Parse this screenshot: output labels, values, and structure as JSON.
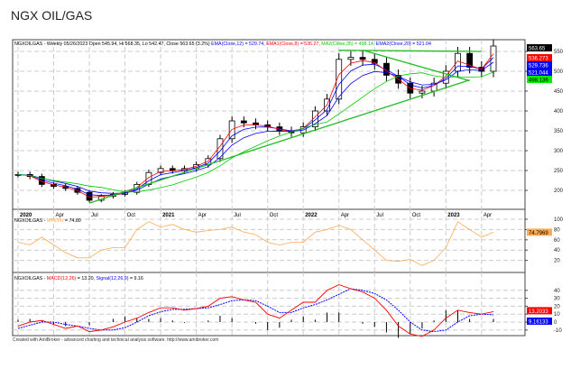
{
  "title": "NGX OIL/GAS",
  "footer": "Created with AmiBroker - advanced charting and technical analysis software. http://www.amibroker.com",
  "chart_data": [
    {
      "type": "candlestick",
      "legend": {
        "prefix": "NGXOILGAS - Weekly 05/26/2023 Open 545.94, Hi 568.35, Lo 542.47, Close 563.65 (3.2%)",
        "ema12": "EMA(Close,12) = 529.74,",
        "ema8": "EMA1(Close,8) = 536.27,",
        "ma35": "MA2(Close,35) = 498.14,",
        "ema20": "EMA2(Close,20) = 521.04"
      },
      "x_ticks": [
        "2020",
        "Apr",
        "Jul",
        "Oct",
        "2021",
        "Apr",
        "Jul",
        "Oct",
        "2022",
        "Apr",
        "Jul",
        "Oct",
        "2023",
        "Apr"
      ],
      "months": [
        "2020-01",
        "2020-02",
        "2020-03",
        "2020-04",
        "2020-05",
        "2020-06",
        "2020-07",
        "2020-08",
        "2020-09",
        "2020-10",
        "2020-11",
        "2020-12",
        "2021-01",
        "2021-02",
        "2021-03",
        "2021-04",
        "2021-05",
        "2021-06",
        "2021-07",
        "2021-08",
        "2021-09",
        "2021-10",
        "2021-11",
        "2021-12",
        "2022-01",
        "2022-02",
        "2022-03",
        "2022-04",
        "2022-05",
        "2022-06",
        "2022-07",
        "2022-08",
        "2022-09",
        "2022-10",
        "2022-11",
        "2022-12",
        "2023-01",
        "2023-02",
        "2023-03",
        "2023-04",
        "2023-05"
      ],
      "close": [
        240,
        235,
        215,
        210,
        205,
        195,
        175,
        185,
        190,
        195,
        215,
        245,
        255,
        250,
        255,
        265,
        280,
        330,
        375,
        370,
        365,
        360,
        350,
        345,
        360,
        400,
        430,
        530,
        535,
        530,
        520,
        490,
        470,
        445,
        450,
        470,
        500,
        545,
        510,
        500,
        563.65
      ],
      "y_ticks": [
        200,
        250,
        300,
        350,
        400,
        450,
        500,
        550
      ],
      "ylim": [
        170,
        580
      ],
      "value_labels": [
        {
          "text": "563.65",
          "color": "#000000"
        },
        {
          "text": "536.273",
          "color": "#ff0000"
        },
        {
          "text": "529.736",
          "color": "#0000ff"
        },
        {
          "text": "521.044",
          "color": "#0000ff"
        },
        {
          "text": "498.136",
          "color": "#00ee00"
        }
      ],
      "trendlines": [
        {
          "from": [
            "2020-07",
            168
          ],
          "to": [
            "2023-03",
            478
          ]
        },
        {
          "from": [
            "2022-04",
            553
          ],
          "to": [
            "2023-04",
            550
          ]
        },
        {
          "from": [
            "2022-06",
            553
          ],
          "to": [
            "2023-03",
            476
          ]
        }
      ],
      "colors": {
        "ema12": "#0000ff",
        "ema8": "#ff0000",
        "ma35": "#00cc00",
        "ema20": "#0000ff",
        "trend": "#22bb22"
      }
    },
    {
      "type": "line",
      "legend": {
        "prefix": "NGXOILGAS -",
        "name": "MFI(14)",
        "value": "= 74.80"
      },
      "values": [
        55,
        50,
        65,
        50,
        35,
        25,
        25,
        40,
        45,
        45,
        80,
        95,
        85,
        90,
        80,
        75,
        78,
        80,
        85,
        75,
        70,
        55,
        50,
        55,
        55,
        75,
        80,
        88,
        80,
        60,
        40,
        20,
        18,
        22,
        10,
        20,
        45,
        95,
        80,
        65,
        74.8
      ],
      "y_ticks": [
        20,
        40,
        60,
        80,
        100
      ],
      "ylim": [
        0,
        100
      ],
      "value_label": "74.7969",
      "color": "#ffaa55"
    },
    {
      "type": "line+bar",
      "legend": {
        "prefix": "NGXOILGAS -",
        "macd": "MACD(12,26)",
        "macd_val": "= 13.20,",
        "signal": "Signal(12,26,9)",
        "signal_val": "= 9.16"
      },
      "macd": [
        -5,
        0,
        2,
        -3,
        -8,
        -5,
        -12,
        -10,
        -6,
        0,
        5,
        12,
        18,
        18,
        15,
        17,
        20,
        30,
        32,
        28,
        25,
        10,
        5,
        15,
        25,
        25,
        40,
        47,
        42,
        38,
        30,
        15,
        -5,
        -15,
        -18,
        -10,
        5,
        15,
        12,
        10,
        13.2
      ],
      "signal": [
        -8,
        -4,
        0,
        0,
        -3,
        -5,
        -8,
        -10,
        -10,
        -7,
        0,
        8,
        13,
        16,
        16,
        17,
        18,
        22,
        27,
        28,
        27,
        20,
        12,
        12,
        18,
        22,
        28,
        35,
        42,
        40,
        36,
        28,
        15,
        0,
        -10,
        -12,
        -10,
        0,
        8,
        10,
        9.16
      ],
      "y_ticks": [
        -10,
        0,
        10,
        20,
        30,
        40
      ],
      "ylim": [
        -15,
        45
      ],
      "value_labels": [
        {
          "text": "13.2033",
          "color": "#ff0000"
        },
        {
          "text": "9.16133",
          "color": "#0000ff"
        }
      ]
    }
  ]
}
